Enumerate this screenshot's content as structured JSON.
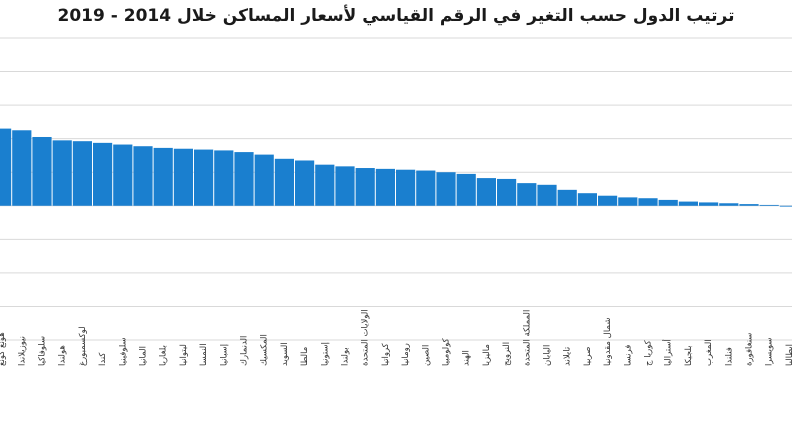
{
  "chart_data": {
    "type": "bar",
    "title": "ترتيب الدول حسب التغير في الرقم القياسي لأسعار المساكن خلال 2014 - 2019",
    "xlabel": "",
    "ylabel": "",
    "grid": true,
    "legend": "none",
    "ylim": [
      -8,
      10
    ],
    "bar_color": "#1a7fcf",
    "grid_color": "#d9d9d9",
    "categories": [
      "هونغ كونغ",
      "نيوزيلاندا",
      "سلوفاكيا",
      "هولندا",
      "لوكسمبورغ",
      "كندا",
      "سلوفينيا",
      "المانيا",
      "بلغاريا",
      "ليتوانيا",
      "النمسا",
      "إسبانيا",
      "الدنمارك",
      "المكسيك",
      "السويد",
      "مالطا",
      "إستونيا",
      "بولندا",
      "الولايات المتحدة",
      "كرواتيا",
      "رومانيا",
      "الصين",
      "كولومبيا",
      "الهند",
      "ماليزيا",
      "النرويج",
      "المملكة المتحدة",
      "اليابان",
      "تايلاند",
      "صربيا",
      "شمال مقدونيا",
      "فرنسا",
      "كوريا ج",
      "أستراليا",
      "بلجيكا",
      "المغرب",
      "فنلندا",
      "سنغافورة",
      "سويسرا",
      "ايطاليا"
    ],
    "values": [
      4.6,
      4.5,
      4.1,
      3.9,
      3.85,
      3.75,
      3.65,
      3.55,
      3.45,
      3.4,
      3.35,
      3.3,
      3.2,
      3.05,
      2.8,
      2.7,
      2.45,
      2.35,
      2.25,
      2.2,
      2.15,
      2.1,
      2.0,
      1.9,
      1.65,
      1.6,
      1.35,
      1.25,
      0.95,
      0.75,
      0.6,
      0.5,
      0.45,
      0.35,
      0.25,
      0.2,
      0.15,
      0.1,
      0.05,
      -0.05
    ]
  }
}
